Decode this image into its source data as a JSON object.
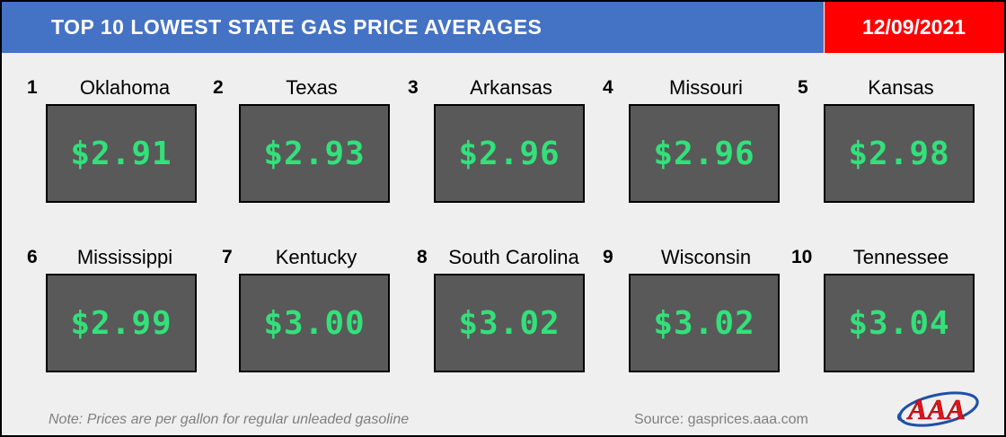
{
  "header": {
    "title": "TOP 10 LOWEST STATE GAS PRICE AVERAGES",
    "date": "12/09/2021"
  },
  "items": [
    {
      "rank": "1",
      "state": "Oklahoma",
      "price": "$2.91"
    },
    {
      "rank": "2",
      "state": "Texas",
      "price": "$2.93"
    },
    {
      "rank": "3",
      "state": "Arkansas",
      "price": "$2.96"
    },
    {
      "rank": "4",
      "state": "Missouri",
      "price": "$2.96"
    },
    {
      "rank": "5",
      "state": "Kansas",
      "price": "$2.98"
    },
    {
      "rank": "6",
      "state": "Mississippi",
      "price": "$2.99"
    },
    {
      "rank": "7",
      "state": "Kentucky",
      "price": "$3.00"
    },
    {
      "rank": "8",
      "state": "South Carolina",
      "price": "$3.02"
    },
    {
      "rank": "9",
      "state": "Wisconsin",
      "price": "$3.02"
    },
    {
      "rank": "10",
      "state": "Tennessee",
      "price": "$3.04"
    }
  ],
  "footer": {
    "note": "Note: Prices are per gallon for regular unleaded gasoline",
    "source": "Source: gasprices.aaa.com"
  },
  "logo": {
    "text": "AAA",
    "icon": "aaa-logo-icon"
  },
  "colors": {
    "header_blue": "#4472c4",
    "date_red": "#ff0000",
    "price_green": "#33e07a",
    "box_gray": "#595959",
    "background": "#efefef"
  }
}
